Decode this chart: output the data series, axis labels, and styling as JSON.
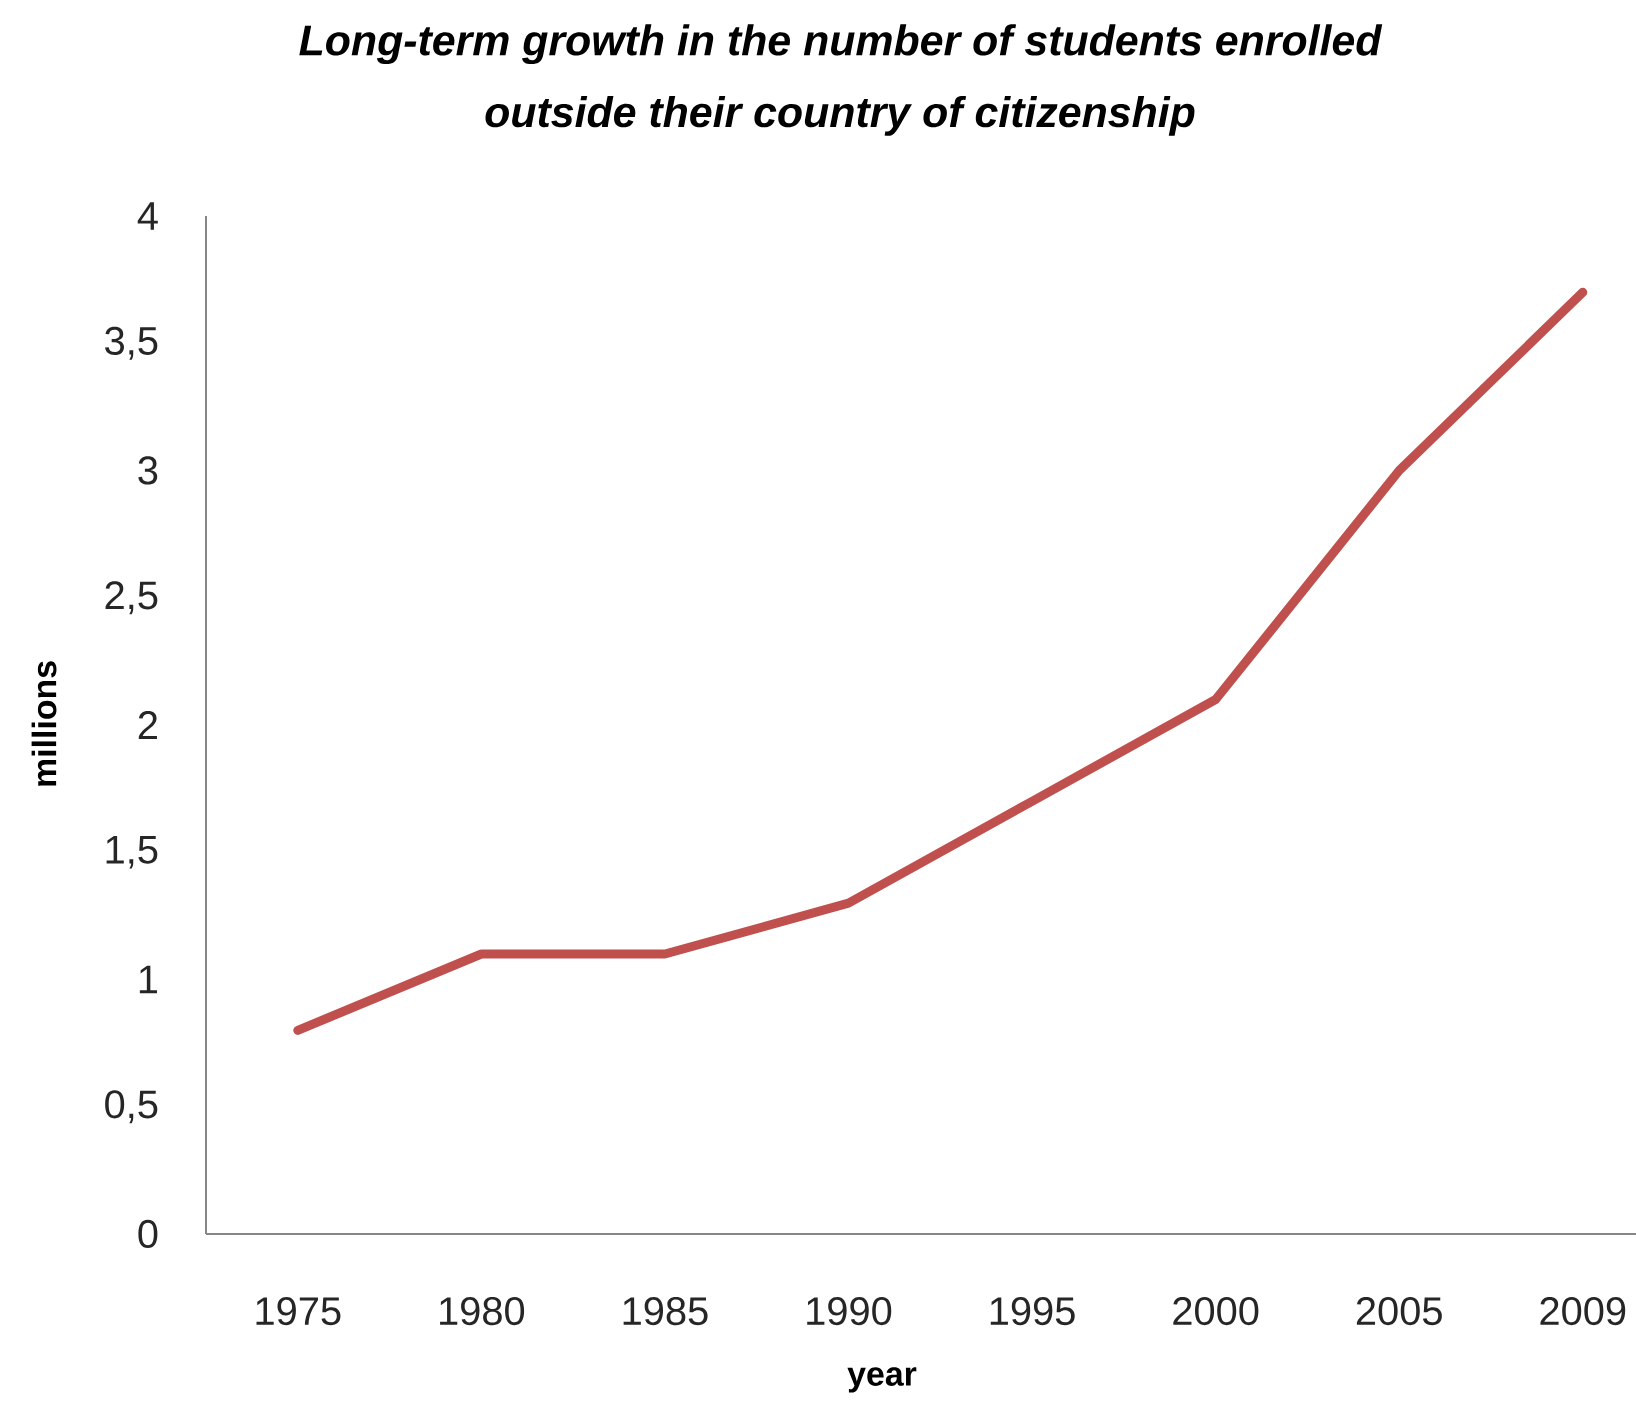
{
  "chart_data": {
    "type": "line",
    "title": "Long-term growth in the number of students enrolled outside their country of citizenship",
    "xlabel": "year",
    "ylabel": "millions",
    "categories": [
      "1975",
      "1980",
      "1985",
      "1990",
      "1995",
      "2000",
      "2005",
      "2009"
    ],
    "series": [
      {
        "color": "#c0504d",
        "values": [
          0.8,
          1.1,
          1.1,
          1.3,
          1.7,
          2.1,
          3.0,
          3.7
        ]
      }
    ],
    "ylim": [
      0,
      4
    ],
    "yticks": [
      0,
      {
        "value": 0.5,
        "label": "0,5"
      },
      1,
      {
        "value": 1.5,
        "label": "1,5"
      },
      2,
      {
        "value": 2.5,
        "label": "2,5"
      },
      3,
      {
        "value": 3.5,
        "label": "3,5"
      },
      4
    ],
    "grid": false,
    "legend": false,
    "marker": "none",
    "line_style": "solid"
  }
}
